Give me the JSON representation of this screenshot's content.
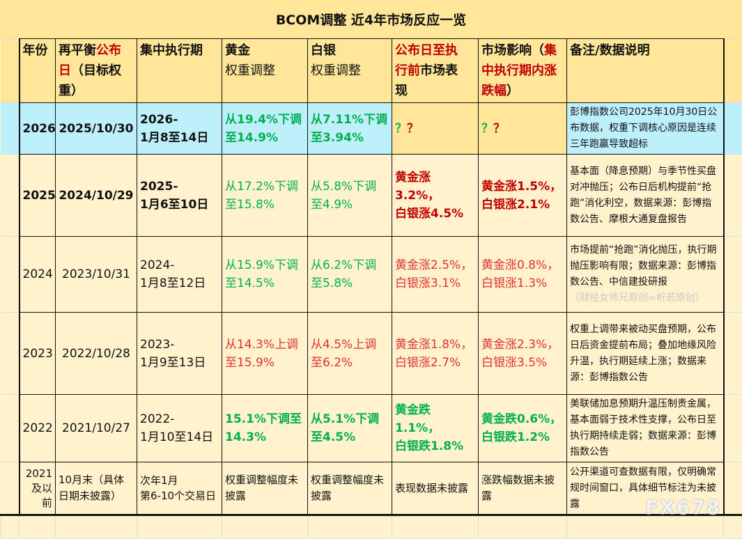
{
  "title": "BCOM调整 近4年市场反应一览",
  "header": {
    "year": "年份",
    "date_a": "再平衡",
    "date_b": "公布\n日",
    "date_c": "（目标权\n重）",
    "period": "集中执行期",
    "gold_a": "黄金",
    "gold_b": "权重调整",
    "silver_a": "白银",
    "silver_b": "权重调整",
    "pre_a": "公布日至执\n行前",
    "pre_b": "市场表\n现",
    "impact_a": "市场影响（",
    "impact_b": "集\n中执行期内涨\n跌幅",
    "impact_c": "）",
    "note": "备注/数据说明"
  },
  "rows": [
    {
      "year": "2026",
      "date": "2025/10/30",
      "period": "2026-\n1月8至14日",
      "gold": "从19.4%下调\n至14.9%",
      "silver": "从7.11%下调\n至3.94%",
      "pre_q1": "？",
      "pre_q2": "？",
      "impact_q1": "？",
      "impact_q2": "？",
      "note": "彭博指数公司2025年10月30日公布数据，权重下调核心原因是连续三年跑赢导致超标"
    },
    {
      "year": "2025",
      "date": "2024/10/29",
      "period": "2025-\n1月6至10日",
      "gold": "从17.2%下调\n至15.8%",
      "silver": "从5.8%下调\n至4.9%",
      "pre": "黄金涨3.2%，\n白银涨4.5%",
      "impact": "黄金涨1.5%，\n白银涨2.1%",
      "note": "基本面（降息预期）与季节性买盘对冲抛压；公布日后机构提前“抢跑”消化利空，数据来源：彭博指数公告、摩根大通复盘报告"
    },
    {
      "year": "2024",
      "date": "2023/10/31",
      "period": "2024-\n1月8至12日",
      "gold": "从15.9%下调\n至14.5%",
      "silver": "从6.2%下调\n至5.8%",
      "pre": "黄金涨2.5%，\n白银涨3.1%",
      "impact": "黄金涨0.8%，\n白银涨1.3%",
      "note": "市场提前“抢跑”消化抛压，执行期抛压影响有限；数据来源：彭博指数公告、中信建投研报",
      "watermark": "（财经女师兄原创=析若原创）"
    },
    {
      "year": "2023",
      "date": "2022/10/28",
      "period": "2023-\n1月9至13日",
      "gold": "从14.3%上调\n至15.9%",
      "silver": "从4.5%上调\n至6.2%",
      "pre": "黄金涨1.8%，\n白银涨2.7%",
      "impact": "黄金涨2.3%，\n白银涨3.5%",
      "note": "权重上调带来被动买盘预期，公布日后资金提前布局；叠加地缘风险升温，执行期延续上涨；数据来源：彭博指数公告"
    },
    {
      "year": "2022",
      "date": "2021/10/27",
      "period": "2022-\n1月10至14日",
      "gold": "15.1%下调至\n14.3%",
      "silver": "从5.1%下调\n至4.5%",
      "pre": "黄金跌1.1%，\n白银跌1.8%",
      "impact": "黄金跌0.6%，\n白银跌1.2%",
      "note": "美联储加息预期升温压制贵金属，基本面弱于技术性支撑，公布日至执行期持续走弱；数据来源：彭博指数公告"
    },
    {
      "year": "2021\n及以\n前",
      "date": "10月末（具体日期未披露）",
      "period": "次年1月\n第6-10个交易日",
      "gold": "权重调整幅度未披露",
      "silver": "权重调整幅度未披露",
      "pre": "表现数据未披露",
      "impact": "涨跌幅数据未披露",
      "note": "公开渠道可查数据有限，仅明确常规时间窗口，具体细节标注为未披露"
    }
  ],
  "watermark": "FX678",
  "colors": {
    "header_bg": "#FFE699",
    "row_bg": "#FFF2CC",
    "highlight_bg": "#BDF0FB",
    "green": "#00B050",
    "red": "#C00000"
  }
}
